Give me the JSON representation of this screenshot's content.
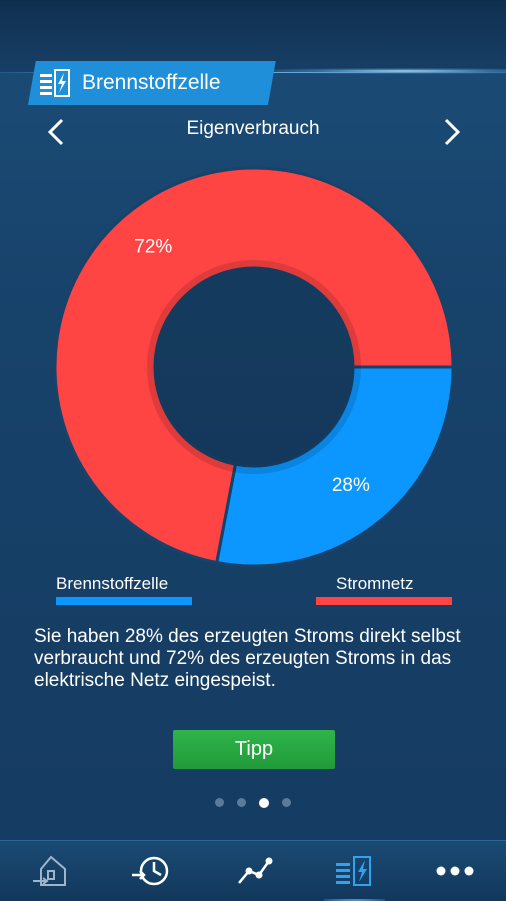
{
  "header": {
    "section_title": "Brennstoffzelle",
    "section_icon": "fuel-cell-icon"
  },
  "subnav": {
    "title": "Eigenverbrauch",
    "prev_icon": "chevron-left-icon",
    "next_icon": "chevron-right-icon"
  },
  "chart_data": {
    "type": "pie",
    "donut": true,
    "categories": [
      "Brennstoffzelle",
      "Stromnetz"
    ],
    "values": [
      28,
      72
    ],
    "labels": [
      "28%",
      "72%"
    ],
    "colors": [
      "#0b97ff",
      "#ff4444"
    ],
    "legend_placement": "bottom"
  },
  "legend": {
    "item1": "Brennstoffzelle",
    "item2": "Stromnetz"
  },
  "description": "Sie haben 28% des erzeugten Stroms direkt selbst verbraucht und 72% des erzeugten Stroms in das elektrische Netz eingespeist.",
  "tip_button": "Tipp",
  "pager": {
    "pages": 4,
    "active_index": 2
  },
  "bottom_nav": {
    "items": [
      {
        "icon": "house-icon",
        "active": false
      },
      {
        "icon": "history-icon",
        "active": false
      },
      {
        "icon": "graph-nodes-icon",
        "active": false
      },
      {
        "icon": "fuel-cell-icon",
        "active": true
      },
      {
        "icon": "more-icon",
        "active": false
      }
    ]
  }
}
